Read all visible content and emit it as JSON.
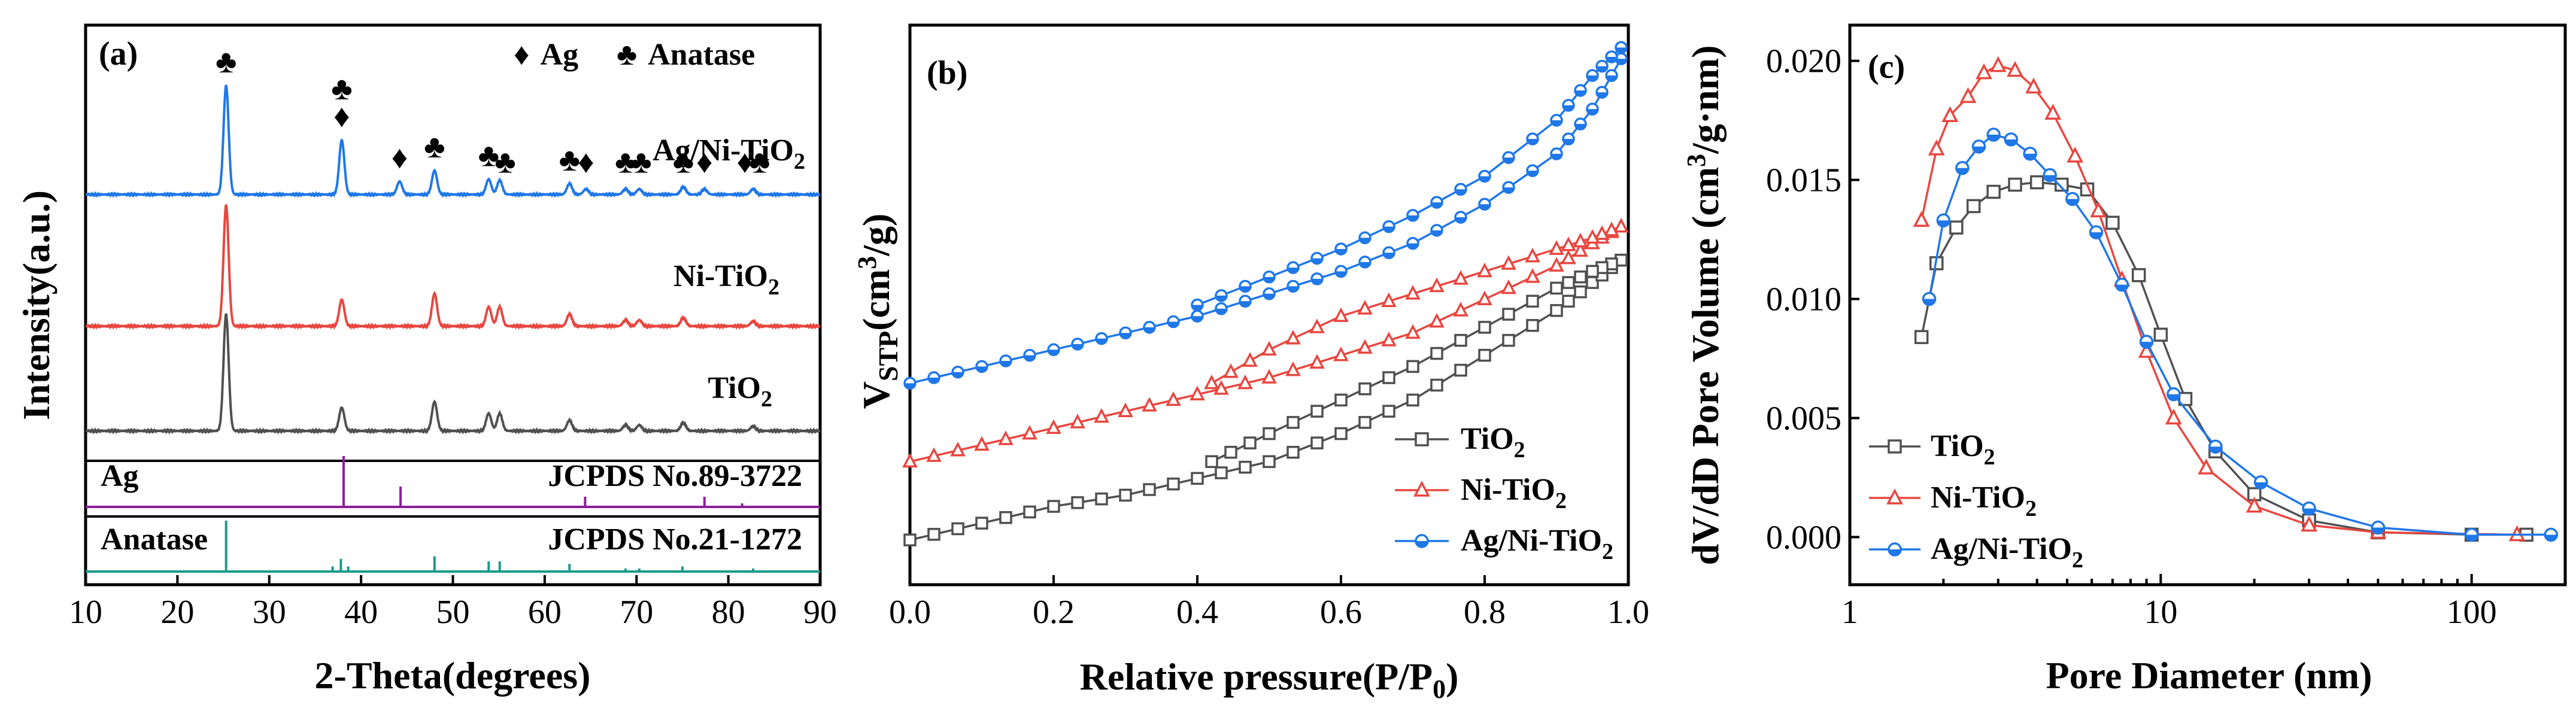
{
  "chart_data": [
    {
      "panel": "(a)",
      "type": "line",
      "title": "",
      "xlabel": "2-Theta(degrees)",
      "ylabel": "Intensity(a.u.)",
      "xlim": [
        10,
        90
      ],
      "xticks": [
        "10",
        "20",
        "30",
        "40",
        "50",
        "60",
        "70",
        "80",
        "90"
      ],
      "symbol_legend": [
        {
          "symbol": "♦",
          "label": "Ag"
        },
        {
          "symbol": "♣",
          "label": "Anatase"
        }
      ],
      "series": [
        {
          "name": "Ag/Ni-TiO₂",
          "label_parts": [
            "Ag/Ni-TiO",
            "2"
          ],
          "color": "#1f77e8",
          "baseline": 0.0,
          "peaks": [
            [
              25.3,
              1.0
            ],
            [
              37.9,
              0.5
            ],
            [
              44.2,
              0.12
            ],
            [
              48.0,
              0.22
            ],
            [
              53.9,
              0.14
            ],
            [
              55.1,
              0.13
            ],
            [
              62.7,
              0.1
            ],
            [
              64.5,
              0.05
            ],
            [
              68.8,
              0.05
            ],
            [
              70.3,
              0.05
            ],
            [
              75.1,
              0.07
            ],
            [
              77.4,
              0.05
            ],
            [
              82.7,
              0.05
            ]
          ]
        },
        {
          "name": "Ni-TiO₂",
          "label_parts": [
            "Ni-TiO",
            "2"
          ],
          "color": "#e8463f",
          "baseline": 0.0,
          "peaks": [
            [
              25.3,
              1.0
            ],
            [
              37.9,
              0.22
            ],
            [
              48.0,
              0.27
            ],
            [
              53.9,
              0.16
            ],
            [
              55.1,
              0.16
            ],
            [
              62.7,
              0.1
            ],
            [
              68.8,
              0.05
            ],
            [
              70.3,
              0.05
            ],
            [
              75.1,
              0.07
            ],
            [
              82.7,
              0.04
            ]
          ]
        },
        {
          "name": "TiO₂",
          "label_parts": [
            "TiO",
            "2"
          ],
          "color": "#505050",
          "baseline": 0.0,
          "peaks": [
            [
              25.3,
              1.0
            ],
            [
              37.9,
              0.2
            ],
            [
              48.0,
              0.25
            ],
            [
              53.9,
              0.15
            ],
            [
              55.1,
              0.15
            ],
            [
              62.7,
              0.09
            ],
            [
              68.8,
              0.05
            ],
            [
              70.3,
              0.05
            ],
            [
              75.1,
              0.07
            ],
            [
              82.7,
              0.04
            ]
          ]
        }
      ],
      "annotations": {
        "peak_symbols": [
          {
            "x": 25.3,
            "symbols": [
              "♣"
            ]
          },
          {
            "x": 37.9,
            "symbols": [
              "♣",
              "♦"
            ]
          },
          {
            "x": 44.2,
            "symbols": [
              "♦"
            ]
          },
          {
            "x": 48.0,
            "symbols": [
              "♣"
            ]
          },
          {
            "x": 53.9,
            "symbols": [
              "♣"
            ]
          },
          {
            "x": 55.7,
            "symbols": [
              "♣"
            ]
          },
          {
            "x": 62.7,
            "symbols": [
              "♣"
            ]
          },
          {
            "x": 64.5,
            "symbols": [
              "♦"
            ]
          },
          {
            "x": 68.8,
            "symbols": [
              "♣"
            ]
          },
          {
            "x": 70.5,
            "symbols": [
              "♣"
            ]
          },
          {
            "x": 75.1,
            "symbols": [
              "♣"
            ]
          },
          {
            "x": 77.4,
            "symbols": [
              "♦"
            ]
          },
          {
            "x": 81.8,
            "symbols": [
              "♦"
            ]
          },
          {
            "x": 83.4,
            "symbols": [
              "♣"
            ]
          }
        ]
      },
      "references": [
        {
          "name": "Ag",
          "label": "JCPDS No.89-3722",
          "color": "#8b1e9b",
          "lines": [
            [
              38.1,
              1.0
            ],
            [
              44.3,
              0.4
            ],
            [
              64.4,
              0.2
            ],
            [
              77.4,
              0.2
            ],
            [
              81.5,
              0.07
            ]
          ]
        },
        {
          "name": "Anatase",
          "label": "JCPDS No.21-1272",
          "color": "#1a9a8a",
          "lines": [
            [
              25.3,
              1.0
            ],
            [
              36.9,
              0.1
            ],
            [
              37.8,
              0.25
            ],
            [
              38.6,
              0.1
            ],
            [
              48.0,
              0.3
            ],
            [
              53.9,
              0.2
            ],
            [
              55.1,
              0.2
            ],
            [
              62.7,
              0.15
            ],
            [
              68.8,
              0.06
            ],
            [
              70.3,
              0.06
            ],
            [
              75.0,
              0.1
            ],
            [
              82.7,
              0.06
            ]
          ]
        }
      ]
    },
    {
      "panel": "(b)",
      "type": "line",
      "title": "",
      "xlabel": "Relative pressure(P/P₀)",
      "xlabel_parts": [
        "Relative pressure(P/P",
        "0",
        ")"
      ],
      "ylabel": "V_STP(cm³/g)",
      "xlim": [
        0,
        1.0
      ],
      "xticks": [
        "0.0",
        "0.2",
        "0.4",
        "0.6",
        "0.8",
        "1.0"
      ],
      "ylim": [
        0,
        1.0
      ],
      "series": [
        {
          "name": "TiO₂",
          "label_parts": [
            "TiO",
            "2"
          ],
          "color": "#505050",
          "marker": "square",
          "adsorption": [
            [
              0.0,
              0.08
            ],
            [
              0.1,
              0.11
            ],
            [
              0.2,
              0.14
            ],
            [
              0.3,
              0.16
            ],
            [
              0.4,
              0.19
            ],
            [
              0.5,
              0.22
            ],
            [
              0.6,
              0.27
            ],
            [
              0.7,
              0.33
            ],
            [
              0.8,
              0.41
            ],
            [
              0.9,
              0.49
            ],
            [
              0.95,
              0.54
            ],
            [
              0.99,
              0.58
            ]
          ],
          "desorption": [
            [
              0.99,
              0.58
            ],
            [
              0.95,
              0.56
            ],
            [
              0.9,
              0.53
            ],
            [
              0.8,
              0.46
            ],
            [
              0.7,
              0.39
            ],
            [
              0.6,
              0.33
            ],
            [
              0.5,
              0.27
            ],
            [
              0.42,
              0.22
            ]
          ]
        },
        {
          "name": "Ni-TiO₂",
          "label_parts": [
            "Ni-TiO",
            "2"
          ],
          "color": "#e8463f",
          "marker": "triangle",
          "adsorption": [
            [
              0.0,
              0.22
            ],
            [
              0.1,
              0.25
            ],
            [
              0.2,
              0.28
            ],
            [
              0.3,
              0.31
            ],
            [
              0.4,
              0.34
            ],
            [
              0.5,
              0.37
            ],
            [
              0.6,
              0.41
            ],
            [
              0.7,
              0.45
            ],
            [
              0.8,
              0.51
            ],
            [
              0.9,
              0.57
            ],
            [
              0.95,
              0.61
            ],
            [
              0.99,
              0.64
            ]
          ],
          "desorption": [
            [
              0.99,
              0.64
            ],
            [
              0.95,
              0.62
            ],
            [
              0.9,
              0.6
            ],
            [
              0.8,
              0.56
            ],
            [
              0.7,
              0.52
            ],
            [
              0.6,
              0.48
            ],
            [
              0.5,
              0.42
            ],
            [
              0.42,
              0.36
            ]
          ]
        },
        {
          "name": "Ag/Ni-TiO₂",
          "label_parts": [
            "Ag/Ni-TiO",
            "2"
          ],
          "color": "#1f77e8",
          "marker": "halfcircle",
          "adsorption": [
            [
              0.0,
              0.36
            ],
            [
              0.1,
              0.39
            ],
            [
              0.2,
              0.42
            ],
            [
              0.3,
              0.45
            ],
            [
              0.4,
              0.48
            ],
            [
              0.5,
              0.52
            ],
            [
              0.6,
              0.56
            ],
            [
              0.7,
              0.61
            ],
            [
              0.8,
              0.68
            ],
            [
              0.9,
              0.77
            ],
            [
              0.95,
              0.85
            ],
            [
              0.99,
              0.94
            ]
          ],
          "desorption": [
            [
              0.99,
              0.96
            ],
            [
              0.95,
              0.91
            ],
            [
              0.9,
              0.83
            ],
            [
              0.8,
              0.73
            ],
            [
              0.7,
              0.66
            ],
            [
              0.6,
              0.6
            ],
            [
              0.5,
              0.55
            ],
            [
              0.4,
              0.5
            ]
          ]
        }
      ]
    },
    {
      "panel": "(c)",
      "type": "line",
      "title": "",
      "xlabel": "Pore Diameter (nm)",
      "ylabel": "dV/dD Pore Volume (cm³/g·nm)",
      "xscale": "log",
      "xlim": [
        1,
        200
      ],
      "ylim": [
        -0.002,
        0.0215
      ],
      "xticks": [
        "1",
        "10",
        "100"
      ],
      "yticks": [
        "0.000",
        "0.005",
        "0.010",
        "0.015",
        "0.020"
      ],
      "series": [
        {
          "name": "TiO₂",
          "label_parts": [
            "TiO",
            "2"
          ],
          "color": "#505050",
          "marker": "square",
          "points": [
            [
              1.7,
              0.0084
            ],
            [
              1.9,
              0.0115
            ],
            [
              2.2,
              0.013
            ],
            [
              2.5,
              0.0139
            ],
            [
              2.9,
              0.0145
            ],
            [
              3.4,
              0.0148
            ],
            [
              4.0,
              0.0149
            ],
            [
              4.8,
              0.0148
            ],
            [
              5.8,
              0.0146
            ],
            [
              7.0,
              0.0132
            ],
            [
              8.5,
              0.011
            ],
            [
              10,
              0.0085
            ],
            [
              12,
              0.0058
            ],
            [
              15,
              0.0036
            ],
            [
              20,
              0.0018
            ],
            [
              30,
              0.0007
            ],
            [
              50,
              0.0002
            ],
            [
              100,
              0.0001
            ],
            [
              150,
              0.0001
            ]
          ]
        },
        {
          "name": "Ni-TiO₂",
          "label_parts": [
            "Ni-TiO",
            "2"
          ],
          "color": "#e8463f",
          "marker": "triangle",
          "points": [
            [
              1.7,
              0.0133
            ],
            [
              1.9,
              0.0163
            ],
            [
              2.1,
              0.0177
            ],
            [
              2.4,
              0.0185
            ],
            [
              2.7,
              0.0195
            ],
            [
              3.0,
              0.0198
            ],
            [
              3.4,
              0.0196
            ],
            [
              3.9,
              0.0189
            ],
            [
              4.5,
              0.0178
            ],
            [
              5.3,
              0.016
            ],
            [
              6.3,
              0.0137
            ],
            [
              7.5,
              0.0108
            ],
            [
              9,
              0.0078
            ],
            [
              11,
              0.005
            ],
            [
              14,
              0.0029
            ],
            [
              20,
              0.0013
            ],
            [
              30,
              0.0005
            ],
            [
              50,
              0.0002
            ],
            [
              140,
              0.0001
            ]
          ]
        },
        {
          "name": "Ag/Ni-TiO₂",
          "label_parts": [
            "Ag/Ni-TiO",
            "2"
          ],
          "color": "#1f77e8",
          "marker": "halfcircle",
          "points": [
            [
              1.8,
              0.01
            ],
            [
              2.0,
              0.0133
            ],
            [
              2.3,
              0.0155
            ],
            [
              2.6,
              0.0164
            ],
            [
              2.9,
              0.0169
            ],
            [
              3.3,
              0.0167
            ],
            [
              3.8,
              0.0161
            ],
            [
              4.4,
              0.0152
            ],
            [
              5.2,
              0.0142
            ],
            [
              6.2,
              0.0128
            ],
            [
              7.5,
              0.0106
            ],
            [
              9,
              0.0082
            ],
            [
              11,
              0.006
            ],
            [
              15,
              0.0038
            ],
            [
              21,
              0.0023
            ],
            [
              30,
              0.0012
            ],
            [
              50,
              0.0004
            ],
            [
              100,
              0.0001
            ],
            [
              180,
              0.0001
            ]
          ]
        }
      ]
    }
  ]
}
